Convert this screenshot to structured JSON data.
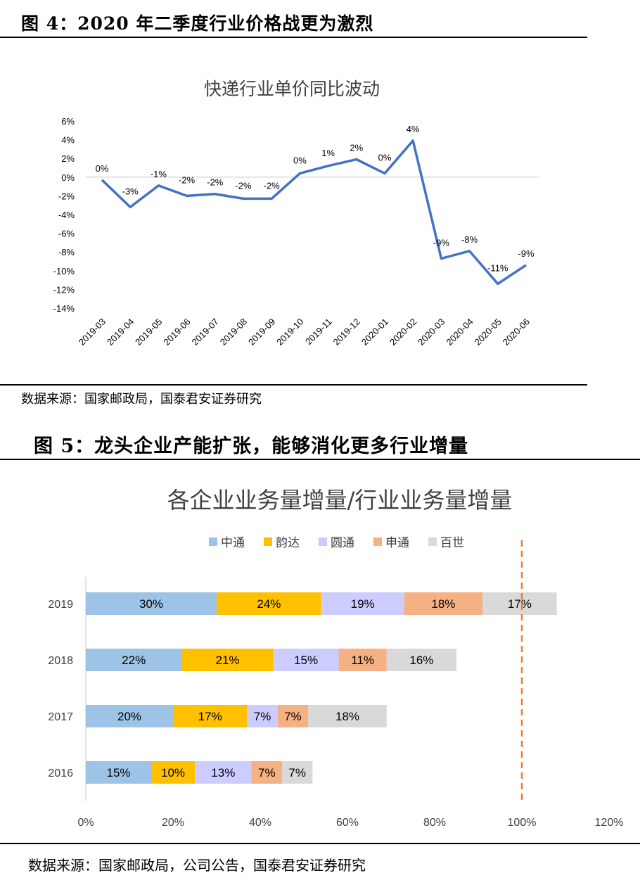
{
  "figure4": {
    "caption": "图 4：2020 年二季度行业价格战更为激烈",
    "source": "数据来源：国家邮政局，国泰君安证券研究"
  },
  "figure5": {
    "caption": "图 5：龙头企业产能扩张，能够消化更多行业增量",
    "source": "数据来源：国家邮政局，公司公告，国泰君安证券研究"
  },
  "chart_data": [
    {
      "type": "line",
      "title": "快递行业单价同比波动",
      "x": [
        "2019-03",
        "2019-04",
        "2019-05",
        "2019-06",
        "2019-07",
        "2019-08",
        "2019-09",
        "2019-10",
        "2019-11",
        "2019-12",
        "2020-01",
        "2020-02",
        "2020-03",
        "2020-04",
        "2020-05",
        "2020-06"
      ],
      "series": [
        {
          "values": [
            -0.3,
            -3.2,
            -0.9,
            -2.0,
            -1.8,
            -2.3,
            -2.3,
            0.4,
            1.2,
            1.9,
            0.4,
            3.9,
            -8.7,
            -7.9,
            -11.4,
            -9.4
          ],
          "labels": [
            "0%",
            "-3%",
            "-1%",
            "-2%",
            "-2%",
            "-2%",
            "-2%",
            "0%",
            "1%",
            "2%",
            "0%",
            "4%",
            "-9%",
            "-8%",
            "-11%",
            "-9%"
          ],
          "color": "#4472C4"
        }
      ],
      "ylim": [
        -14,
        6
      ],
      "yticks": [
        "6%",
        "4%",
        "2%",
        "0%",
        "-2%",
        "-4%",
        "-6%",
        "-8%",
        "-10%",
        "-12%",
        "-14%"
      ],
      "grid": false
    },
    {
      "type": "bar",
      "orientation": "horizontal",
      "stacked": true,
      "title": "各企业业务量增量/行业业务量增量",
      "categories": [
        "2019",
        "2018",
        "2017",
        "2016"
      ],
      "series": [
        {
          "name": "中通",
          "color": "#9DC3E6",
          "values": [
            30,
            22,
            20,
            15
          ],
          "labels": [
            "30%",
            "22%",
            "20%",
            "15%"
          ]
        },
        {
          "name": "韵达",
          "color": "#FFC000",
          "values": [
            24,
            21,
            17,
            10
          ],
          "labels": [
            "24%",
            "21%",
            "17%",
            "10%"
          ]
        },
        {
          "name": "圆通",
          "color": "#CCCCFF",
          "values": [
            19,
            15,
            7,
            13
          ],
          "labels": [
            "19%",
            "15%",
            "7%",
            "13%"
          ]
        },
        {
          "name": "申通",
          "color": "#F4B183",
          "values": [
            18,
            11,
            7,
            7
          ],
          "labels": [
            "18%",
            "11%",
            "7%",
            "7%"
          ]
        },
        {
          "name": "百世",
          "color": "#D9D9D9",
          "values": [
            17,
            16,
            18,
            7
          ],
          "labels": [
            "17%",
            "16%",
            "18%",
            "7%"
          ]
        }
      ],
      "xlim": [
        0,
        120
      ],
      "xticks": [
        "0%",
        "20%",
        "40%",
        "60%",
        "80%",
        "100%",
        "120%"
      ],
      "reference_line": {
        "x": 100,
        "color": "#ED7D31",
        "style": "dashed"
      },
      "legend_position": "top"
    }
  ]
}
